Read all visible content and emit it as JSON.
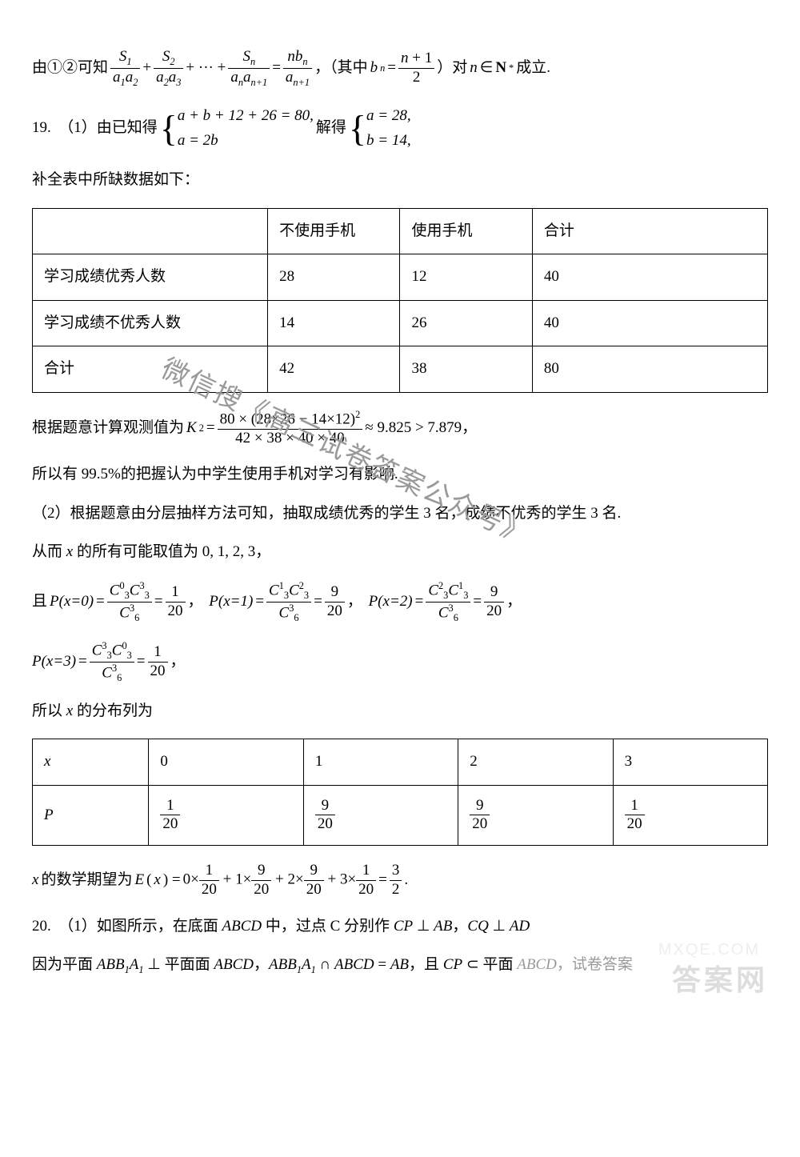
{
  "line_intro": "由①②可知 ",
  "line_intro_tail": "，（其中 ",
  "line_intro_tail2": "）对 ",
  "line_intro_tail3": " 成立.",
  "bn_eq": "b",
  "n_in": "n ∈ N*",
  "q19_label": "19.　（1）由已知得 ",
  "q19_sys1_line1": "a + b + 12 + 26 = 80,",
  "q19_sys1_line2": "a = 2b",
  "q19_mid": " 解得 ",
  "q19_sys2_line1": "a = 28,",
  "q19_sys2_line2": "b = 14,",
  "table1_caption": "补全表中所缺数据如下：",
  "table1": {
    "columns": [
      "",
      "不使用手机",
      "使用手机",
      "合计"
    ],
    "rows": [
      [
        "学习成绩优秀人数",
        "28",
        "12",
        "40"
      ],
      [
        "学习成绩不优秀人数",
        "14",
        "26",
        "40"
      ],
      [
        "合计",
        "42",
        "38",
        "80"
      ]
    ],
    "col_widths": [
      "32%",
      "18%",
      "18%",
      "32%"
    ]
  },
  "k2_pre": "根据题意计算观测值为 ",
  "k2_num": "80 × (28×26 − 14×12)",
  "k2_den": "42 × 38 × 40 × 40",
  "k2_tail": " ≈ 9.825 > 7.879，",
  "conclusion1": "所以有 99.5%的把握认为中学生使用手机对学习有影响.",
  "part2_pre": "（2）根据题意由分层抽样方法可知，抽取成绩优秀的学生 3 名，成绩不优秀的学生 3 名.",
  "x_vals_line": "从而 x 的所有可能取值为 0, 1, 2, 3，",
  "p_and": "且 ",
  "probs": [
    {
      "label": "P(x=0)",
      "numTop": "C",
      "n1s": "0",
      "n1b": "3",
      "n2s": "3",
      "n2b": "3",
      "denTop": "C",
      "dens": "3",
      "denb": "6",
      "val_num": "1",
      "val_den": "20",
      "tail": "，"
    },
    {
      "label": "P(x=1)",
      "numTop": "C",
      "n1s": "1",
      "n1b": "3",
      "n2s": "2",
      "n2b": "3",
      "denTop": "C",
      "dens": "3",
      "denb": "6",
      "val_num": "9",
      "val_den": "20",
      "tail": "，"
    },
    {
      "label": "P(x=2)",
      "numTop": "C",
      "n1s": "2",
      "n1b": "3",
      "n2s": "1",
      "n2b": "3",
      "denTop": "C",
      "dens": "3",
      "denb": "6",
      "val_num": "9",
      "val_den": "20",
      "tail": "，"
    }
  ],
  "prob_last": {
    "label": "P(x=3)",
    "n1s": "3",
    "n1b": "3",
    "n2s": "0",
    "n2b": "3",
    "dens": "3",
    "denb": "6",
    "val_num": "1",
    "val_den": "20",
    "tail": "，"
  },
  "dist_caption": "所以 x 的分布列为",
  "table2": {
    "header": [
      "x",
      "0",
      "1",
      "2",
      "3"
    ],
    "row_label": "P",
    "row_vals": [
      {
        "num": "1",
        "den": "20"
      },
      {
        "num": "9",
        "den": "20"
      },
      {
        "num": "9",
        "den": "20"
      },
      {
        "num": "1",
        "den": "20"
      }
    ],
    "col_widths": [
      "17%",
      "17%",
      "17%",
      "17%",
      "17%"
    ]
  },
  "ex_pre": "x 的数学期望为 ",
  "ex_terms": [
    {
      "c": "0",
      "num": "1",
      "den": "20"
    },
    {
      "c": "1",
      "num": "9",
      "den": "20"
    },
    {
      "c": "2",
      "num": "9",
      "den": "20"
    },
    {
      "c": "3",
      "num": "1",
      "den": "20"
    }
  ],
  "ex_result_num": "3",
  "ex_result_den": "2",
  "q20_line1": "20.　（1）如图所示，在底面 ABCD 中，过点 C 分别作 CP ⊥ AB，CQ ⊥ AD",
  "q20_line2_pre": "因为平面 ",
  "q20_abb1a1": "ABB₁A₁",
  "q20_line2_mid": " ⊥ 平面面 ABCD，",
  "q20_line2_int": " ∩ ABCD = AB，且 CP ⊂ 平面 ",
  "q20_line2_abcd": "ABCD",
  "q20_line2_tail": "，试卷答案",
  "wm1": "微信搜《高三试卷答案公众号》",
  "wm2": "答案网",
  "wm3": "MXQE.COM"
}
